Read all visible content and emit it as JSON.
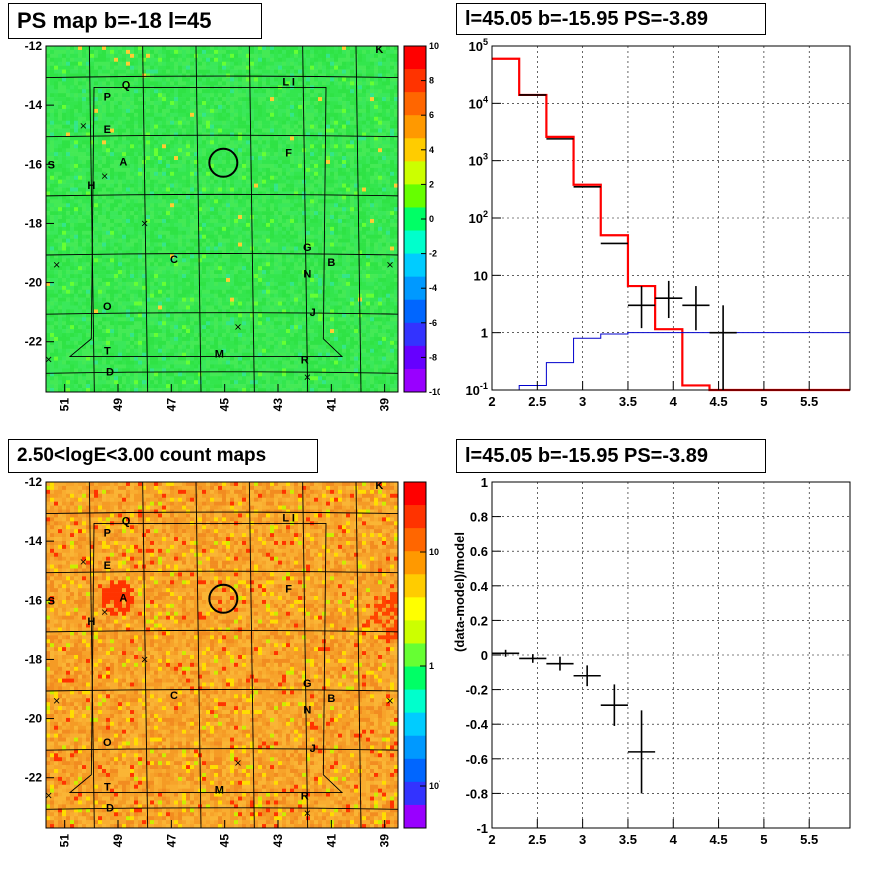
{
  "panels": {
    "tl_title": "PS map b=-18 l=45",
    "tr_title": "l=45.05 b=-15.95 PS=-3.89",
    "bl_title": "2.50<logE<3.00 count maps",
    "br_title": "l=45.05 b=-15.95 PS=-3.89"
  },
  "chart_data": [
    {
      "type": "heatmap",
      "title": "PS map b=-18 l=45",
      "x_ticks": [
        "51",
        "49",
        "47",
        "45",
        "43",
        "41",
        "39"
      ],
      "y_ticks": [
        "-12",
        "-14",
        "-16",
        "-18",
        "-20",
        "-22"
      ],
      "xlim": [
        51.7,
        38.5
      ],
      "ylim": [
        -23.7,
        -12
      ],
      "colorbar_ticks": [
        "10",
        "8",
        "6",
        "4",
        "2",
        "0",
        "-2",
        "-4",
        "-6",
        "-8",
        "-10"
      ],
      "colorbar_range": [
        -10,
        10
      ],
      "background_color": "#33e64d",
      "source_labels": [
        {
          "text": "K",
          "l": 39.2,
          "b": -12.1
        },
        {
          "text": "L I",
          "l": 42.6,
          "b": -13.2
        },
        {
          "text": "Q",
          "l": 48.7,
          "b": -13.3
        },
        {
          "text": "P",
          "l": 49.4,
          "b": -13.7
        },
        {
          "text": "E",
          "l": 49.4,
          "b": -14.8
        },
        {
          "text": "A",
          "l": 48.8,
          "b": -15.9
        },
        {
          "text": "F",
          "l": 42.6,
          "b": -15.6
        },
        {
          "text": "S",
          "l": 51.5,
          "b": -16.0
        },
        {
          "text": "H",
          "l": 50.0,
          "b": -16.7
        },
        {
          "text": "G",
          "l": 41.9,
          "b": -18.8
        },
        {
          "text": "C",
          "l": 46.9,
          "b": -19.2
        },
        {
          "text": "B",
          "l": 41.0,
          "b": -19.3
        },
        {
          "text": "N",
          "l": 41.9,
          "b": -19.7
        },
        {
          "text": "O",
          "l": 49.4,
          "b": -20.8
        },
        {
          "text": "J",
          "l": 41.7,
          "b": -21.0
        },
        {
          "text": "T",
          "l": 49.4,
          "b": -22.3
        },
        {
          "text": "M",
          "l": 45.2,
          "b": -22.4
        },
        {
          "text": "R",
          "l": 42.0,
          "b": -22.6
        },
        {
          "text": "D",
          "l": 49.3,
          "b": -23.0
        }
      ]
    },
    {
      "type": "step",
      "title": "l=45.05 b=-15.95 PS=-3.89",
      "yscale": "log",
      "xlim": [
        2,
        5.95
      ],
      "ylim": [
        0.1,
        100000
      ],
      "x_ticks": [
        "2",
        "2.5",
        "3",
        "3.5",
        "4",
        "4.5",
        "5",
        "5.5"
      ],
      "y_ticks": [
        "10^-1",
        "1",
        "10",
        "10^2",
        "10^3",
        "10^4",
        "10^5"
      ],
      "grid": true,
      "bin_edges": [
        2.0,
        2.3,
        2.6,
        2.9,
        3.2,
        3.5,
        3.8,
        4.1,
        4.4,
        4.7,
        5.0,
        5.3,
        5.6,
        5.95
      ],
      "series": [
        {
          "color": "#ff0000",
          "values": [
            60000,
            14000,
            2600,
            380,
            50,
            6.5,
            1.15,
            0.12,
            0.1,
            0.1,
            0.1,
            0.1,
            0.1
          ]
        },
        {
          "color": "#0000cc",
          "values": [
            0.1,
            0.12,
            0.3,
            0.8,
            0.95,
            1.0,
            1.0,
            1.0,
            1.0,
            1.0,
            1.0,
            1.0,
            1.0
          ]
        }
      ],
      "data_points": [
        {
          "x": 2.45,
          "y": 14000
        },
        {
          "x": 2.75,
          "y": 2400
        },
        {
          "x": 3.05,
          "y": 350
        },
        {
          "x": 3.35,
          "y": 36
        },
        {
          "x": 3.65,
          "y": 3,
          "ylo": 1.2,
          "yhi": 6.5
        },
        {
          "x": 3.95,
          "y": 4,
          "ylo": 1.8,
          "yhi": 8
        },
        {
          "x": 4.25,
          "y": 3,
          "ylo": 1.1,
          "yhi": 6.5
        },
        {
          "x": 4.55,
          "y": 1,
          "ylo": 0.1,
          "yhi": 3
        }
      ]
    },
    {
      "type": "heatmap",
      "title": "2.50<logE<3.00 count maps",
      "x_ticks": [
        "51",
        "49",
        "47",
        "45",
        "43",
        "41",
        "39"
      ],
      "y_ticks": [
        "-12",
        "-14",
        "-16",
        "-18",
        "-20",
        "-22"
      ],
      "xlim": [
        51.7,
        38.5
      ],
      "ylim": [
        -23.7,
        -12
      ],
      "colorbar_ticks": [
        "10",
        "1",
        "10^-1"
      ],
      "colorbar_scale": "log",
      "background_color": "#f7a32a"
    },
    {
      "type": "scatter",
      "title": "l=45.05 b=-15.95 PS=-3.89",
      "ylabel": "(data-model)/model",
      "xlim": [
        2,
        5.95
      ],
      "ylim": [
        -1,
        1
      ],
      "x_ticks": [
        "2",
        "2.5",
        "3",
        "3.5",
        "4",
        "4.5",
        "5",
        "5.5"
      ],
      "y_ticks": [
        "-1",
        "-0.8",
        "-0.6",
        "-0.4",
        "-0.2",
        "0",
        "0.2",
        "0.4",
        "0.6",
        "0.8",
        "1"
      ],
      "grid": true,
      "points": [
        {
          "x": 2.15,
          "y": 0.01,
          "err": 0.02
        },
        {
          "x": 2.45,
          "y": -0.02,
          "err": 0.025
        },
        {
          "x": 2.75,
          "y": -0.05,
          "err": 0.04
        },
        {
          "x": 3.05,
          "y": -0.12,
          "err": 0.06
        },
        {
          "x": 3.35,
          "y": -0.29,
          "err": 0.12
        },
        {
          "x": 3.65,
          "y": -0.56,
          "err": 0.24
        }
      ]
    }
  ]
}
